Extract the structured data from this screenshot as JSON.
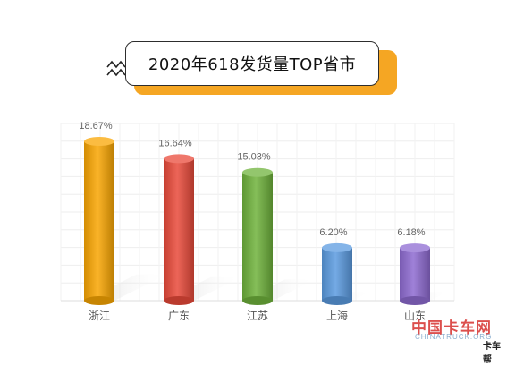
{
  "title": "2020年618发货量TOP省市",
  "colors": {
    "title_shadow": "#f5a623",
    "zigzag": "#222222",
    "zigzag_accent": "#f5a623"
  },
  "chart_data": {
    "type": "bar",
    "title": "2020年618发货量TOP省市",
    "xlabel": "",
    "ylabel": "",
    "ylim": [
      0,
      20
    ],
    "grid": true,
    "categories": [
      "浙江",
      "广东",
      "江苏",
      "上海",
      "山东"
    ],
    "values": [
      18.67,
      16.64,
      15.03,
      6.2,
      6.18
    ],
    "value_labels": [
      "18.67%",
      "16.64%",
      "15.03%",
      "6.20%",
      "6.18%"
    ],
    "bar_colors": [
      "#f9a602",
      "#e94a3a",
      "#6fb33c",
      "#5b9be0",
      "#8e6bd1"
    ]
  },
  "watermark": {
    "name": "中国卡车网",
    "site": "CHINATRUCK.ORG",
    "logo_text": "卡车帮"
  }
}
